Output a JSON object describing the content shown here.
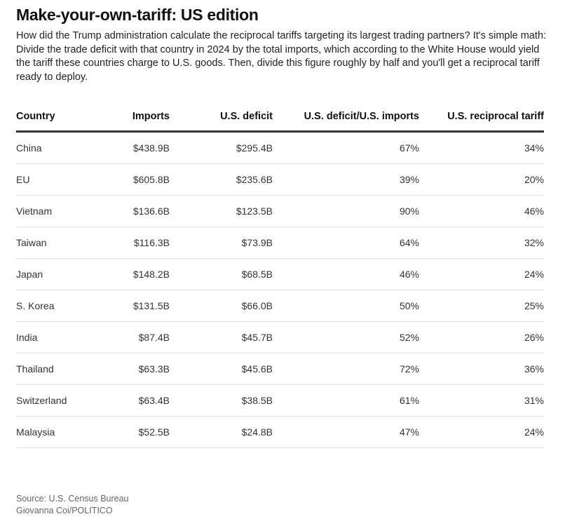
{
  "title": "Make-your-own-tariff: US edition",
  "subtitle": "How did the Trump administration calculate the reciprocal tariffs targeting its largest trading partners? It's simple math: Divide the trade deficit with that country in 2024 by the total imports, which according to the White House would yield the tariff these countries charge to U.S. goods. Then, divide this figure roughly by half and you'll get a reciprocal tariff ready to deploy.",
  "chart_data": {
    "type": "table",
    "columns": [
      "Country",
      "Imports",
      "U.S. deficit",
      "U.S. deficit/U.S. imports",
      "U.S. reciprocal tariff"
    ],
    "rows": [
      [
        "China",
        "$438.9B",
        "$295.4B",
        "67%",
        "34%"
      ],
      [
        "EU",
        "$605.8B",
        "$235.6B",
        "39%",
        "20%"
      ],
      [
        "Vietnam",
        "$136.6B",
        "$123.5B",
        "90%",
        "46%"
      ],
      [
        "Taiwan",
        "$116.3B",
        "$73.9B",
        "64%",
        "32%"
      ],
      [
        "Japan",
        "$148.2B",
        "$68.5B",
        "46%",
        "24%"
      ],
      [
        "S. Korea",
        "$131.5B",
        "$66.0B",
        "50%",
        "25%"
      ],
      [
        "India",
        "$87.4B",
        "$45.7B",
        "52%",
        "26%"
      ],
      [
        "Thailand",
        "$63.3B",
        "$45.6B",
        "72%",
        "36%"
      ],
      [
        "Switzerland",
        "$63.4B",
        "$38.5B",
        "61%",
        "31%"
      ],
      [
        "Malaysia",
        "$52.5B",
        "$24.8B",
        "47%",
        "24%"
      ]
    ]
  },
  "footer": {
    "source": "Source:  U.S. Census Bureau",
    "credit": "Giovanna Coi/POLITICO"
  }
}
